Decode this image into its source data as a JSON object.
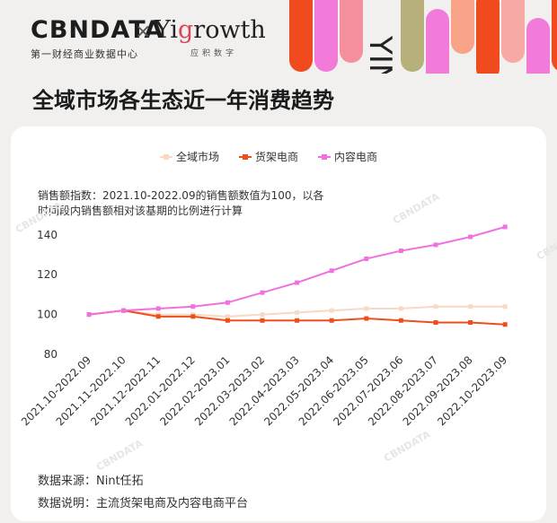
{
  "header": {
    "logo_text": "CBNDATA",
    "logo_subtitle": "第一财经商业数据中心",
    "cross": "×",
    "brand2_prefix": "Yi",
    "brand2_accent": "g",
    "brand2_rest": "rowth",
    "brand2_subtitle": "应积数字",
    "decor_text": "YING"
  },
  "page_title": "全域市场各生态近一年消费趋势",
  "note": "销售额指数：2021.10-2022.09的销售额数值为100，以各时间段内销售额相对该基期的比例进行计算",
  "sources": {
    "line1": "数据来源：Nint任拓",
    "line2": "数据说明：主流货架电商及内容电商平台"
  },
  "watermark": "CBNDATA",
  "chart_data": {
    "type": "line",
    "categories": [
      "2021.10-2022.09",
      "2021.11-2022.10",
      "2021.12-2022.11",
      "2022.01-2022.12",
      "2022.02-2023.01",
      "2022.03-2023.02",
      "2022.04-2023.03",
      "2022.05-2023.04",
      "2022.06-2023.05",
      "2022.07-2023.06",
      "2022.08-2023.07",
      "2022.09-2023.08",
      "2022.10-2023.09"
    ],
    "series": [
      {
        "name": "全域市场",
        "color": "#f8d9c4",
        "values": [
          100,
          102,
          100,
          100,
          99,
          100,
          101,
          102,
          103,
          103,
          104,
          104,
          104
        ]
      },
      {
        "name": "货架电商",
        "color": "#f04d1c",
        "values": [
          100,
          102,
          99,
          99,
          97,
          97,
          97,
          97,
          98,
          97,
          96,
          96,
          95
        ]
      },
      {
        "name": "内容电商",
        "color": "#f070e0",
        "values": [
          100,
          102,
          103,
          104,
          106,
          111,
          116,
          122,
          128,
          132,
          135,
          139,
          144
        ]
      }
    ],
    "yticks": [
      80,
      100,
      120,
      140
    ],
    "ylim": [
      80,
      148
    ],
    "grid": false,
    "legend_position": "top"
  }
}
